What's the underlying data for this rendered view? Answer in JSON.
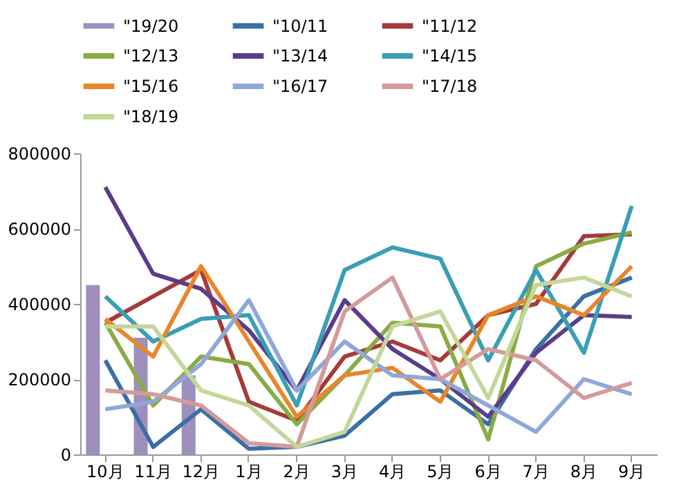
{
  "chart_data": {
    "type": "line",
    "categories": [
      "10月",
      "11月",
      "12月",
      "1月",
      "2月",
      "3月",
      "4月",
      "5月",
      "6月",
      "7月",
      "8月",
      "9月"
    ],
    "ylim": [
      0,
      800000
    ],
    "yticks": [
      0,
      200000,
      400000,
      600000,
      800000
    ],
    "grid": false,
    "legend": "top",
    "marker": "none",
    "line_style": "solid",
    "series": [
      {
        "name": "\"19/20",
        "type": "bar",
        "color": "#9e8fbf",
        "values": [
          450000,
          310000,
          210000,
          null,
          null,
          null,
          null,
          null,
          null,
          null,
          null,
          null
        ]
      },
      {
        "name": "\"10/11",
        "color": "#3a6fa8",
        "values": [
          250000,
          20000,
          120000,
          15000,
          20000,
          50000,
          160000,
          170000,
          80000,
          280000,
          420000,
          470000
        ]
      },
      {
        "name": "\"11/12",
        "color": "#a63a3a",
        "values": [
          350000,
          420000,
          490000,
          140000,
          90000,
          260000,
          300000,
          250000,
          370000,
          400000,
          580000,
          585000
        ]
      },
      {
        "name": "\"12/13",
        "color": "#8aab46",
        "values": [
          350000,
          130000,
          260000,
          240000,
          80000,
          210000,
          350000,
          340000,
          40000,
          500000,
          560000,
          590000
        ]
      },
      {
        "name": "\"13/14",
        "color": "#5b3c8c",
        "values": [
          710000,
          480000,
          440000,
          330000,
          170000,
          410000,
          280000,
          200000,
          100000,
          270000,
          370000,
          365000
        ]
      },
      {
        "name": "\"14/15",
        "color": "#3a9eb5",
        "values": [
          420000,
          300000,
          360000,
          370000,
          130000,
          490000,
          550000,
          520000,
          250000,
          490000,
          270000,
          660000
        ]
      },
      {
        "name": "\"15/16",
        "color": "#e8862a",
        "values": [
          360000,
          260000,
          500000,
          300000,
          100000,
          210000,
          230000,
          140000,
          370000,
          420000,
          370000,
          500000
        ]
      },
      {
        "name": "\"16/17",
        "color": "#8fa8d8",
        "values": [
          120000,
          140000,
          240000,
          410000,
          170000,
          300000,
          210000,
          200000,
          130000,
          60000,
          200000,
          160000
        ]
      },
      {
        "name": "\"17/18",
        "color": "#d59a9a",
        "values": [
          170000,
          160000,
          130000,
          30000,
          20000,
          380000,
          470000,
          200000,
          280000,
          250000,
          150000,
          190000
        ]
      },
      {
        "name": "\"18/19",
        "color": "#c4d79b",
        "values": [
          340000,
          340000,
          170000,
          130000,
          20000,
          60000,
          340000,
          380000,
          150000,
          450000,
          470000,
          420000
        ]
      }
    ]
  }
}
